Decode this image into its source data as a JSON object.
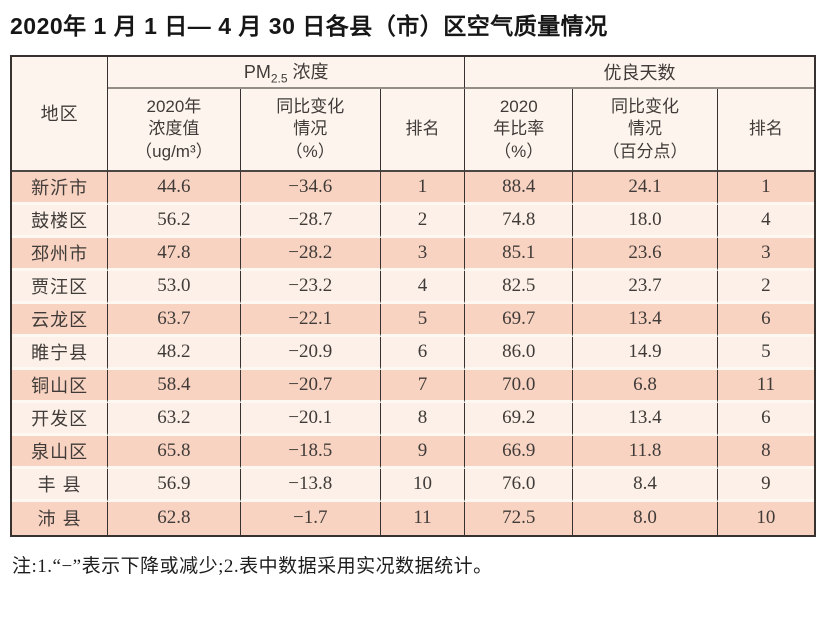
{
  "page": {
    "title": "2020年 1 月 1 日— 4 月 30 日各县（市）区空气质量情况",
    "footnote": "注:1.“−”表示下降或减少;2.表中数据采用实况数据统计。"
  },
  "colors": {
    "border": "#37322f",
    "group_divider": "#948e88",
    "row_dark": "#f8d3c2",
    "row_light": "#fcf0e8",
    "header_bg": "#fdf4ee",
    "row_separator": "#fef8f3",
    "text": "#403b38"
  },
  "table": {
    "region_header": "地区",
    "pm_group": {
      "prefix": "PM",
      "sub": "2.5",
      "suffix": "浓度"
    },
    "good_group": {
      "label": "优良天数"
    },
    "subheaders": {
      "pm_value": {
        "line1": "2020年",
        "line2": "浓度值",
        "line3": "（ug/m³）"
      },
      "pm_change": {
        "line1": "同比变化",
        "line2": "情况",
        "line3": "（%）"
      },
      "pm_rank": {
        "label": "排名"
      },
      "good_rate": {
        "line1": "2020",
        "line2": "年比率",
        "line3": "（%）"
      },
      "good_change": {
        "line1": "同比变化",
        "line2": "情况",
        "line3": "（百分点）"
      },
      "good_rank": {
        "label": "排名"
      }
    },
    "rows": [
      [
        "新沂市",
        "44.6",
        "−34.6",
        "1",
        "88.4",
        "24.1",
        "1"
      ],
      [
        "鼓楼区",
        "56.2",
        "−28.7",
        "2",
        "74.8",
        "18.0",
        "4"
      ],
      [
        "邳州市",
        "47.8",
        "−28.2",
        "3",
        "85.1",
        "23.6",
        "3"
      ],
      [
        "贾汪区",
        "53.0",
        "−23.2",
        "4",
        "82.5",
        "23.7",
        "2"
      ],
      [
        "云龙区",
        "63.7",
        "−22.1",
        "5",
        "69.7",
        "13.4",
        "6"
      ],
      [
        "睢宁县",
        "48.2",
        "−20.9",
        "6",
        "86.0",
        "14.9",
        "5"
      ],
      [
        "铜山区",
        "58.4",
        "−20.7",
        "7",
        "70.0",
        "6.8",
        "11"
      ],
      [
        "开发区",
        "63.2",
        "−20.1",
        "8",
        "69.2",
        "13.4",
        "6"
      ],
      [
        "泉山区",
        "65.8",
        "−18.5",
        "9",
        "66.9",
        "11.8",
        "8"
      ],
      [
        "丰 县",
        "56.9",
        "−13.8",
        "10",
        "76.0",
        "8.4",
        "9"
      ],
      [
        "沛 县",
        "62.8",
        "−1.7",
        "11",
        "72.5",
        "8.0",
        "10"
      ]
    ]
  }
}
